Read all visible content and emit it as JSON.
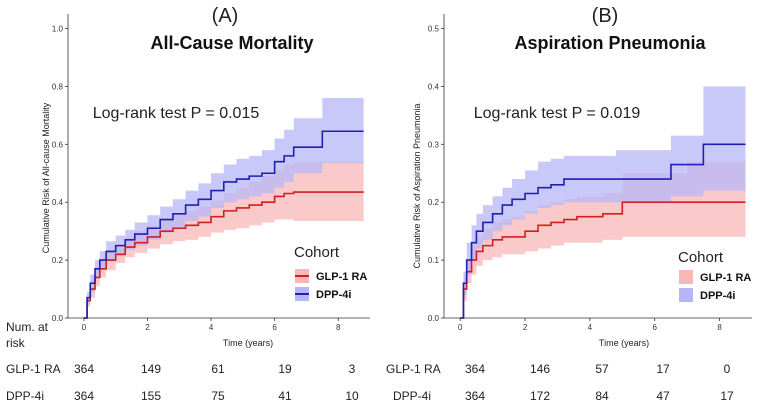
{
  "colors": {
    "glp_line": "#d11f1f",
    "glp_band": "#f8b8b8",
    "dpp_line": "#1f1fb0",
    "dpp_band": "#b7b7f7",
    "axis": "#333333"
  },
  "chart_data": [
    {
      "type": "line",
      "panel_label": "(A)",
      "title": "All-Cause Mortality",
      "xlabel": "Time (years)",
      "ylabel": "Cumulative Risk of All-cause Mortality",
      "xlim": [
        -0.5,
        9
      ],
      "ylim": [
        0,
        1.05
      ],
      "xticks": [
        0,
        2,
        4,
        6,
        8
      ],
      "yticks": [
        0.0,
        0.2,
        0.4,
        0.6,
        0.8,
        1.0
      ],
      "ytick_labels": [
        "0.0",
        "0.2",
        "0.4",
        "0.6",
        "0.8",
        "1.0"
      ],
      "annotation": "Log-rank test P = 0.015",
      "legend": {
        "title": "Cohort",
        "position": "bottom-right"
      },
      "series": [
        {
          "name": "GLP-1 RA",
          "color_key": "glp",
          "x": [
            0,
            0.1,
            0.2,
            0.35,
            0.5,
            0.7,
            1.0,
            1.3,
            1.6,
            2.0,
            2.4,
            2.8,
            3.2,
            3.6,
            4.0,
            4.4,
            4.8,
            5.2,
            5.6,
            6.0,
            6.3,
            6.6,
            7.0,
            7.5,
            8.0,
            8.5,
            8.8
          ],
          "y": [
            0,
            0.06,
            0.1,
            0.14,
            0.17,
            0.2,
            0.22,
            0.245,
            0.26,
            0.28,
            0.3,
            0.31,
            0.32,
            0.33,
            0.35,
            0.37,
            0.38,
            0.39,
            0.4,
            0.42,
            0.43,
            0.435,
            0.435,
            0.435,
            0.435,
            0.435,
            0.435
          ],
          "lower": [
            0,
            0.04,
            0.07,
            0.11,
            0.14,
            0.165,
            0.19,
            0.21,
            0.225,
            0.24,
            0.255,
            0.265,
            0.27,
            0.28,
            0.295,
            0.305,
            0.31,
            0.32,
            0.33,
            0.34,
            0.34,
            0.335,
            0.335,
            0.335,
            0.335,
            0.335,
            0.335
          ],
          "upper": [
            0,
            0.08,
            0.13,
            0.17,
            0.2,
            0.235,
            0.255,
            0.28,
            0.3,
            0.32,
            0.345,
            0.36,
            0.37,
            0.385,
            0.405,
            0.43,
            0.45,
            0.47,
            0.49,
            0.51,
            0.53,
            0.54,
            0.54,
            0.54,
            0.54,
            0.54,
            0.54
          ]
        },
        {
          "name": "DPP-4i",
          "color_key": "dpp",
          "x": [
            0,
            0.1,
            0.2,
            0.35,
            0.5,
            0.7,
            1.0,
            1.3,
            1.6,
            2.0,
            2.4,
            2.8,
            3.2,
            3.6,
            4.0,
            4.4,
            4.8,
            5.2,
            5.6,
            6.0,
            6.3,
            6.6,
            7.0,
            7.5,
            8.0,
            8.5,
            8.8
          ],
          "y": [
            0,
            0.07,
            0.12,
            0.17,
            0.2,
            0.23,
            0.25,
            0.27,
            0.29,
            0.31,
            0.34,
            0.36,
            0.39,
            0.41,
            0.44,
            0.47,
            0.48,
            0.49,
            0.5,
            0.54,
            0.56,
            0.59,
            0.59,
            0.645,
            0.645,
            0.645,
            0.645
          ],
          "lower": [
            0,
            0.05,
            0.09,
            0.14,
            0.17,
            0.195,
            0.215,
            0.235,
            0.25,
            0.27,
            0.295,
            0.31,
            0.335,
            0.35,
            0.38,
            0.4,
            0.41,
            0.42,
            0.43,
            0.45,
            0.47,
            0.5,
            0.5,
            0.535,
            0.535,
            0.535,
            0.535
          ],
          "upper": [
            0,
            0.09,
            0.15,
            0.2,
            0.23,
            0.265,
            0.285,
            0.305,
            0.33,
            0.355,
            0.385,
            0.41,
            0.44,
            0.465,
            0.5,
            0.53,
            0.55,
            0.56,
            0.58,
            0.62,
            0.65,
            0.69,
            0.69,
            0.76,
            0.76,
            0.76,
            0.76
          ]
        }
      ],
      "risk_table": {
        "times": [
          0,
          2,
          4,
          6,
          8
        ],
        "rows": [
          {
            "label": "GLP-1 RA",
            "counts": [
              "364",
              "149",
              "61",
              "19",
              "3"
            ]
          },
          {
            "label": "DPP-4i",
            "counts": [
              "364",
              "155",
              "75",
              "41",
              "10"
            ]
          }
        ]
      }
    },
    {
      "type": "line",
      "panel_label": "(B)",
      "title": "Aspiration Pneumonia",
      "xlabel": "Time (years)",
      "ylabel": "Cumulative Risk of Aspiration Pneumonia",
      "xlim": [
        -0.5,
        9
      ],
      "ylim": [
        0,
        0.525
      ],
      "xticks": [
        0,
        2,
        4,
        6,
        8
      ],
      "yticks": [
        0.0,
        0.1,
        0.2,
        0.3,
        0.4,
        0.5
      ],
      "ytick_labels": [
        "0.0",
        "0.1",
        "0.2",
        "0.3",
        "0.4",
        "0.5"
      ],
      "annotation": "Log-rank test P = 0.019",
      "legend": {
        "title": "Cohort",
        "position": "bottom-right"
      },
      "series": [
        {
          "name": "GLP-1 RA",
          "color_key": "glp",
          "x": [
            0,
            0.1,
            0.2,
            0.35,
            0.5,
            0.7,
            1.0,
            1.3,
            1.6,
            2.0,
            2.4,
            2.8,
            3.2,
            3.6,
            4.0,
            4.4,
            4.8,
            5.0,
            5.5,
            6.0,
            6.5,
            7.0,
            7.5,
            8.0,
            8.5,
            8.8
          ],
          "y": [
            0,
            0.05,
            0.08,
            0.1,
            0.115,
            0.125,
            0.135,
            0.14,
            0.14,
            0.15,
            0.16,
            0.165,
            0.17,
            0.175,
            0.175,
            0.18,
            0.18,
            0.2,
            0.2,
            0.2,
            0.2,
            0.2,
            0.2,
            0.2,
            0.2,
            0.2
          ],
          "lower": [
            0,
            0.03,
            0.06,
            0.075,
            0.09,
            0.1,
            0.105,
            0.11,
            0.11,
            0.115,
            0.12,
            0.125,
            0.13,
            0.13,
            0.13,
            0.135,
            0.135,
            0.14,
            0.14,
            0.14,
            0.14,
            0.14,
            0.14,
            0.14,
            0.14,
            0.14
          ],
          "upper": [
            0,
            0.07,
            0.1,
            0.125,
            0.14,
            0.155,
            0.165,
            0.17,
            0.175,
            0.185,
            0.195,
            0.2,
            0.205,
            0.21,
            0.21,
            0.215,
            0.215,
            0.25,
            0.25,
            0.25,
            0.25,
            0.27,
            0.27,
            0.27,
            0.27,
            0.27
          ]
        },
        {
          "name": "DPP-4i",
          "color_key": "dpp",
          "x": [
            0,
            0.1,
            0.2,
            0.35,
            0.5,
            0.7,
            1.0,
            1.3,
            1.6,
            2.0,
            2.4,
            2.8,
            3.2,
            3.6,
            4.0,
            4.4,
            4.8,
            5.0,
            5.5,
            6.0,
            6.5,
            7.0,
            7.5,
            8.0,
            8.5,
            8.8
          ],
          "y": [
            0,
            0.06,
            0.1,
            0.13,
            0.15,
            0.165,
            0.18,
            0.195,
            0.205,
            0.215,
            0.225,
            0.23,
            0.24,
            0.24,
            0.24,
            0.24,
            0.24,
            0.24,
            0.24,
            0.24,
            0.265,
            0.265,
            0.3,
            0.3,
            0.3,
            0.3
          ],
          "lower": [
            0,
            0.04,
            0.075,
            0.1,
            0.12,
            0.135,
            0.15,
            0.16,
            0.17,
            0.18,
            0.19,
            0.195,
            0.2,
            0.2,
            0.2,
            0.2,
            0.2,
            0.2,
            0.2,
            0.2,
            0.21,
            0.21,
            0.22,
            0.22,
            0.22,
            0.22
          ],
          "upper": [
            0,
            0.08,
            0.13,
            0.16,
            0.18,
            0.195,
            0.21,
            0.225,
            0.24,
            0.255,
            0.27,
            0.275,
            0.28,
            0.28,
            0.28,
            0.28,
            0.29,
            0.29,
            0.29,
            0.29,
            0.315,
            0.315,
            0.4,
            0.4,
            0.4,
            0.4
          ]
        }
      ],
      "risk_table": {
        "times": [
          0,
          2,
          4,
          6,
          8
        ],
        "rows": [
          {
            "label": "GLP-1 RA",
            "counts": [
              "364",
              "146",
              "57",
              "17",
              "0"
            ]
          },
          {
            "label": "DPP-4i",
            "counts": [
              "364",
              "172",
              "84",
              "47",
              "17"
            ]
          }
        ]
      }
    }
  ],
  "risk_header": {
    "line1": "Num. at",
    "line2": "risk"
  }
}
